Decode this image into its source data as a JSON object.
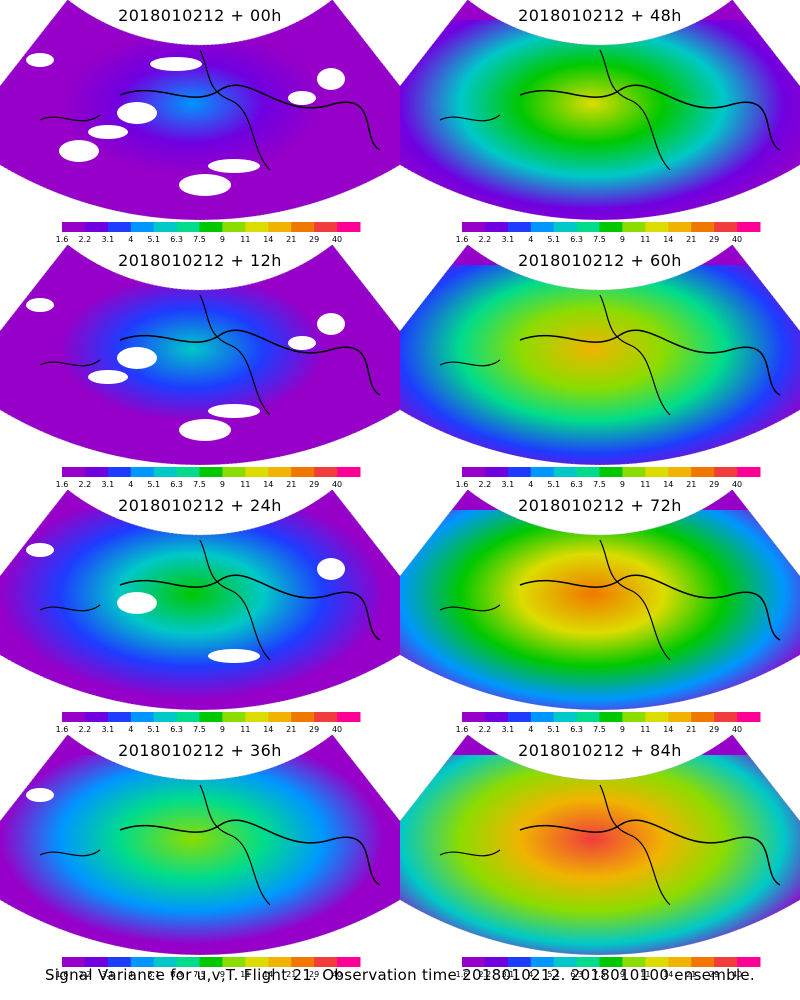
{
  "caption": "Signal Variance for u,v,T. Flight 21. Observation time 2018010212. 2018010100 ensemble.",
  "colorbar": {
    "labels": [
      "1.6",
      "2.2",
      "3.1",
      "4",
      "5.1",
      "6.3",
      "7.5",
      "9",
      "11",
      "14",
      "21",
      "29",
      "40"
    ],
    "colors": [
      "#9600c8",
      "#7000e0",
      "#1e3cff",
      "#0096ff",
      "#00c8c8",
      "#00dc8c",
      "#00c800",
      "#8cdc00",
      "#dcdc00",
      "#f0b400",
      "#f07800",
      "#f03c3c",
      "#ff0096"
    ]
  },
  "panels": [
    {
      "title": "2018010212 + 00h",
      "level": 0.05
    },
    {
      "title": "2018010212 + 48h",
      "level": 0.55
    },
    {
      "title": "2018010212 + 12h",
      "level": 0.15
    },
    {
      "title": "2018010212 + 60h",
      "level": 0.65
    },
    {
      "title": "2018010212 + 24h",
      "level": 0.28
    },
    {
      "title": "2018010212 + 72h",
      "level": 0.75
    },
    {
      "title": "2018010212 + 36h",
      "level": 0.42
    },
    {
      "title": "2018010212 + 84h",
      "level": 0.85
    }
  ],
  "icons": [
    "polar-map-icon"
  ]
}
